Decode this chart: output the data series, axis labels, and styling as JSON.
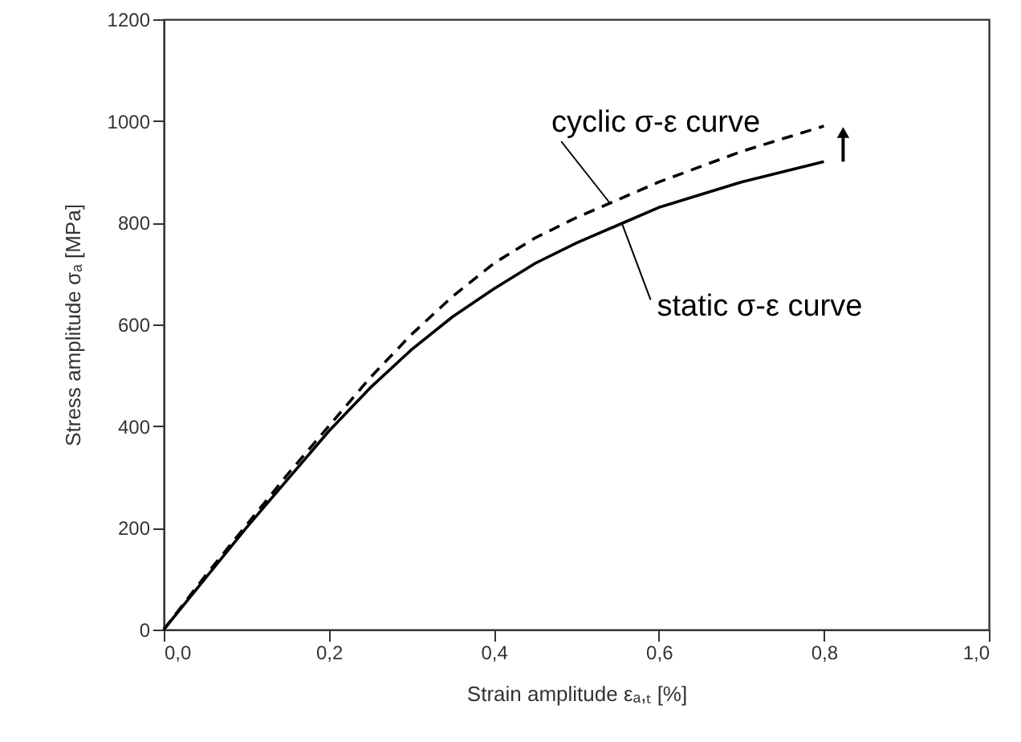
{
  "chart_data": {
    "type": "line",
    "xlabel": "Strain amplitude εₐ,ₜ [%]",
    "ylabel": "Stress amplitude σₐ [MPa]",
    "x": [
      0,
      0.05,
      0.1,
      0.15,
      0.2,
      0.25,
      0.3,
      0.35,
      0.4,
      0.45,
      0.5,
      0.55,
      0.6,
      0.65,
      0.7,
      0.75,
      0.8
    ],
    "series": [
      {
        "color": "#000000",
        "line_style": "dashed",
        "values": [
          0,
          105,
          205,
          305,
          400,
          495,
          580,
          655,
          720,
          770,
          810,
          845,
          880,
          910,
          940,
          965,
          990
        ]
      },
      {
        "color": "#000000",
        "line_style": "solid",
        "values": [
          0,
          100,
          200,
          295,
          390,
          475,
          550,
          615,
          670,
          720,
          760,
          795,
          830,
          855,
          880,
          900,
          920
        ]
      }
    ],
    "annotations": [
      {
        "text": "cyclic σ-ε curve",
        "x": 0.54,
        "y": 840
      },
      {
        "text": "static σ-ε curve",
        "x": 0.555,
        "y": 800
      }
    ],
    "xlim": [
      0,
      1
    ],
    "ylim": [
      0,
      1200
    ],
    "xticks": [
      {
        "value": 0,
        "label": "0,0"
      },
      {
        "value": 0.2,
        "label": "0,2"
      },
      {
        "value": 0.4,
        "label": "0,4"
      },
      {
        "value": 0.6,
        "label": "0,6"
      },
      {
        "value": 0.8,
        "label": "0,8"
      },
      {
        "value": 1,
        "label": "1,0"
      }
    ],
    "yticks": [
      0,
      200,
      400,
      600,
      800,
      1000,
      1200
    ],
    "grid": false,
    "marker": "none"
  }
}
